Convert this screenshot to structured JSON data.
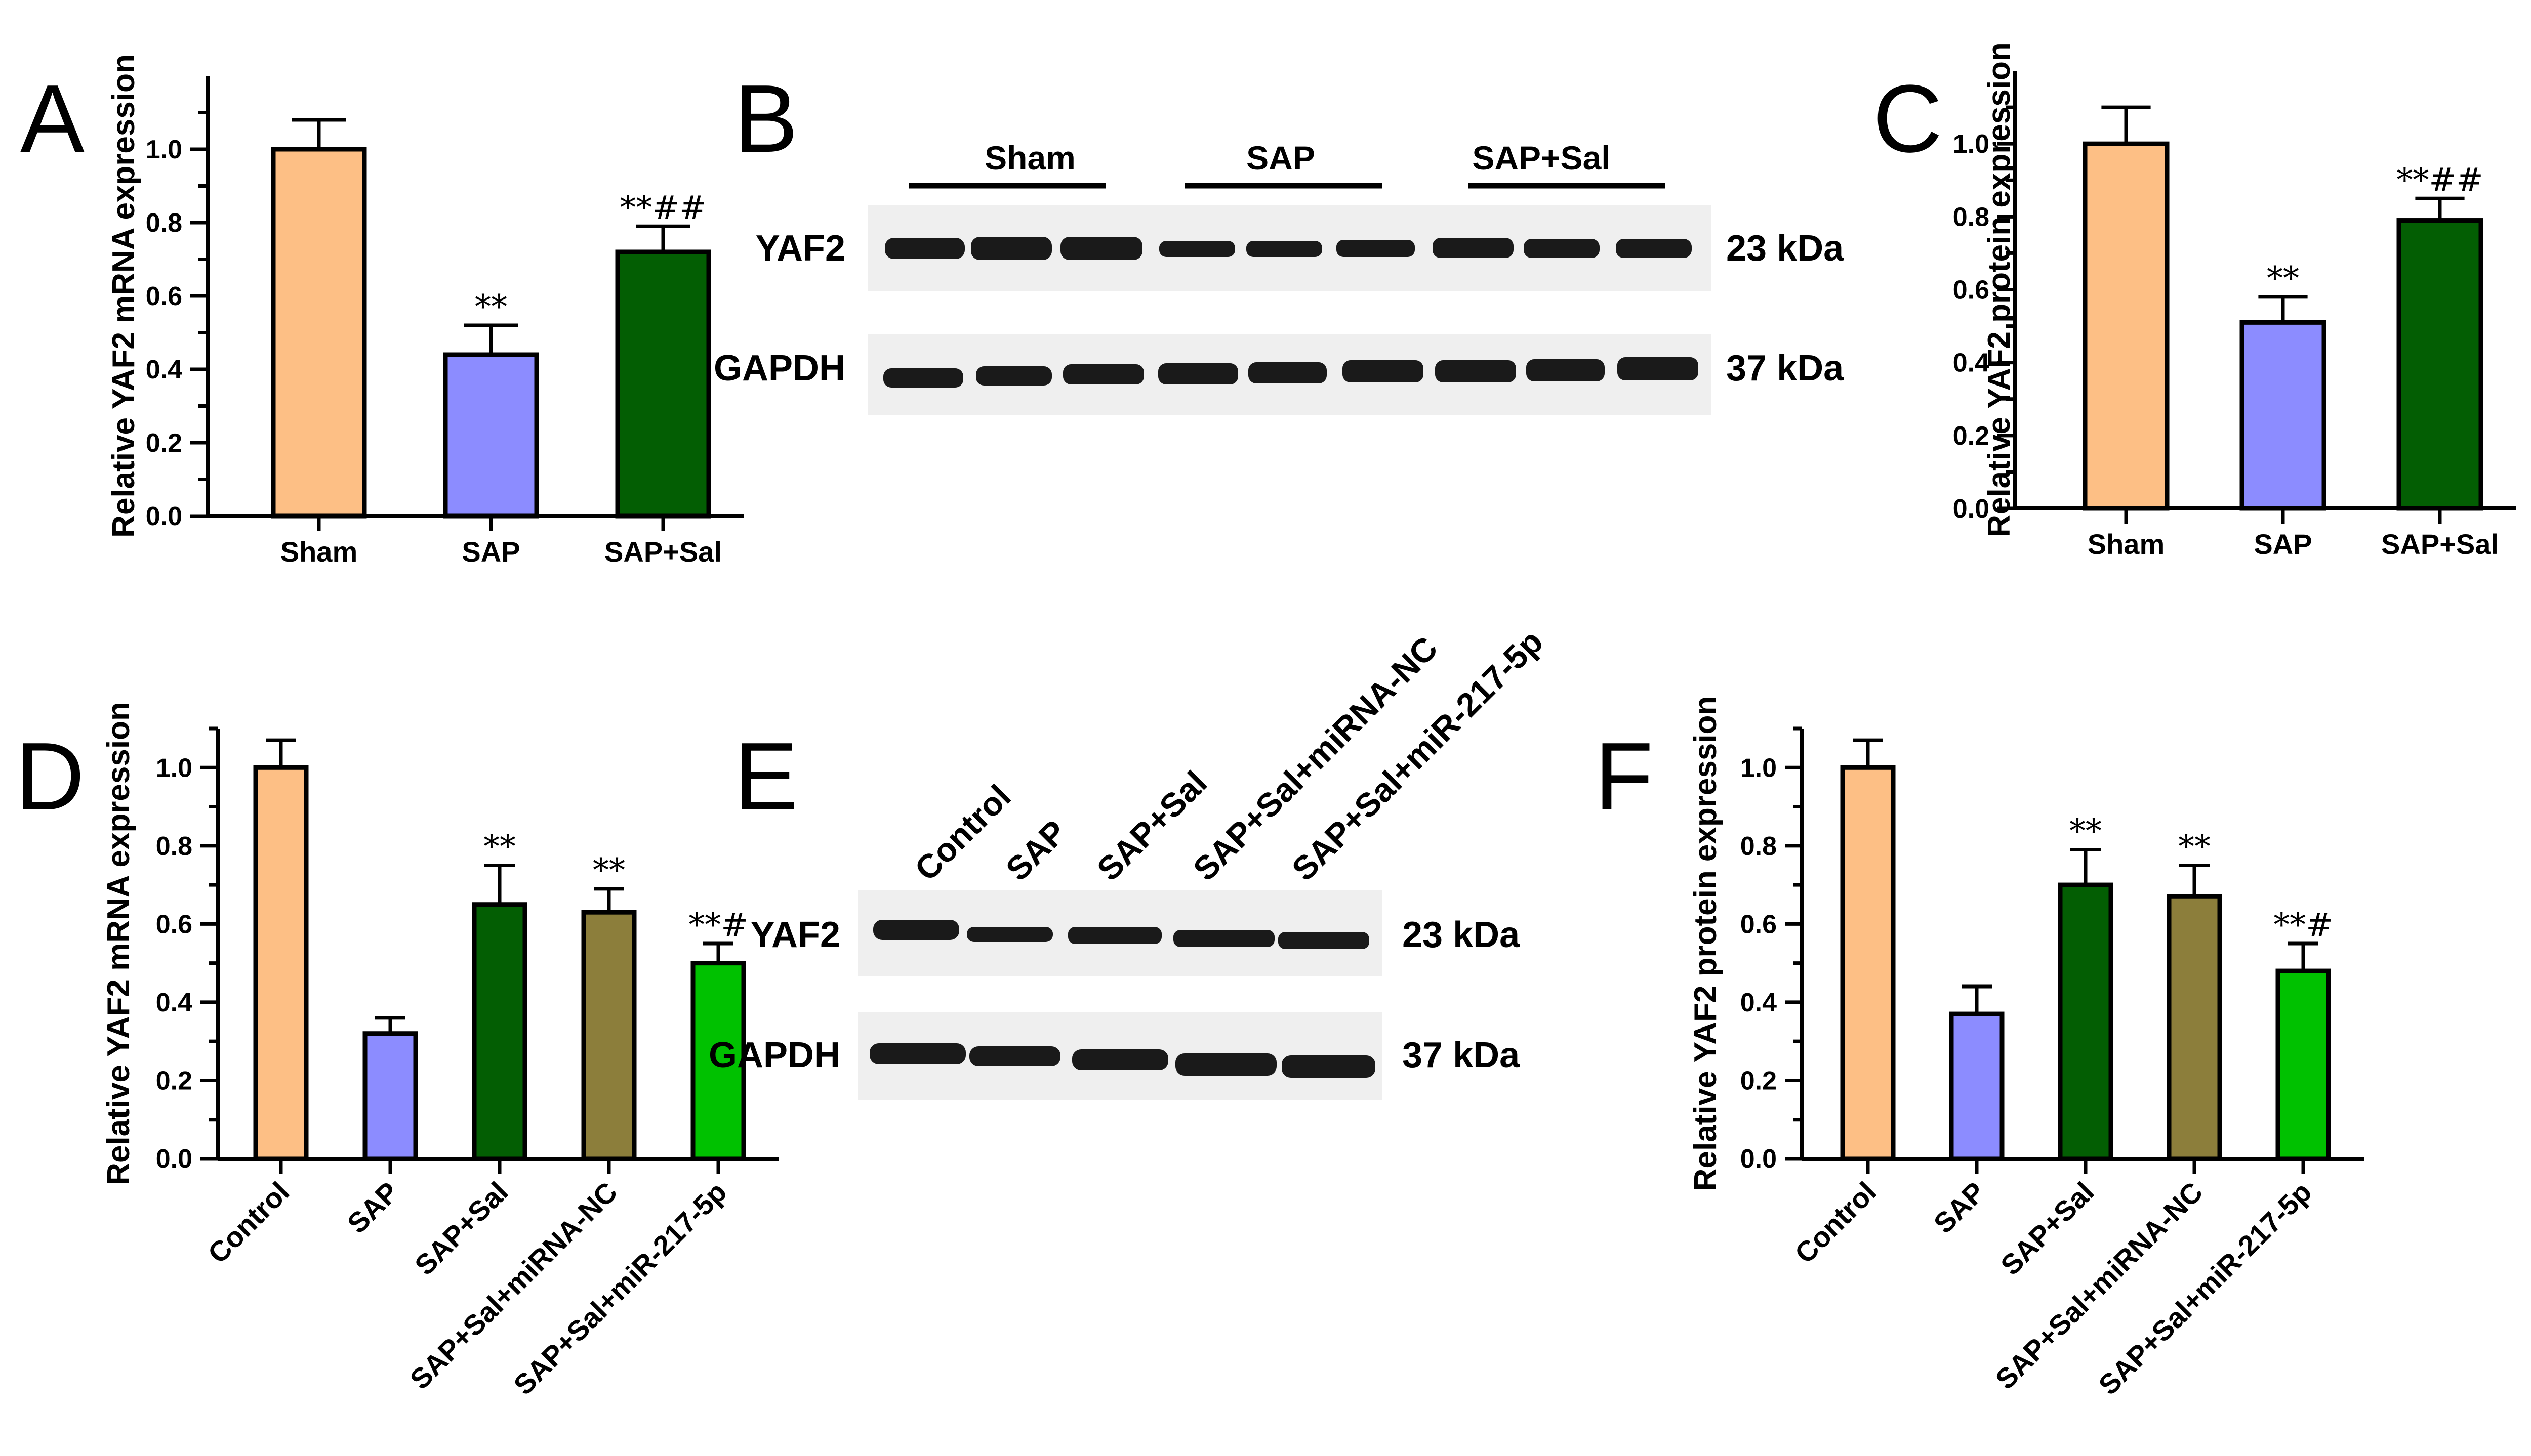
{
  "colors": {
    "Sham": "#FDBF85",
    "Control": "#FDBF85",
    "SAP": "#8C8CFF",
    "SAP+Sal": "#035E03",
    "SAP+Sal+miRNA-NC": "#8C7E3B",
    "SAP+Sal+miR-217-5p": "#00C100"
  },
  "chart_data": [
    {
      "panel": "A",
      "type": "bar",
      "categories": [
        "Sham",
        "SAP",
        "SAP+Sal"
      ],
      "values": [
        1.0,
        0.44,
        0.72
      ],
      "errors": [
        0.08,
        0.08,
        0.07
      ],
      "annotations": [
        "",
        "**",
        "**##"
      ],
      "ylabel": "Relative YAF2 mRNA expression",
      "ylim": [
        0,
        1.2
      ],
      "yticks": [
        "0.0",
        "0.2",
        "0.4",
        "0.6",
        "0.8",
        "1.0"
      ]
    },
    {
      "panel": "C",
      "type": "bar",
      "categories": [
        "Sham",
        "SAP",
        "SAP+Sal"
      ],
      "values": [
        1.0,
        0.51,
        0.79
      ],
      "errors": [
        0.1,
        0.07,
        0.06
      ],
      "annotations": [
        "",
        "**",
        "**##"
      ],
      "ylabel": "Relative YAF2 protein expression",
      "ylim": [
        0,
        1.2
      ],
      "yticks": [
        "0.0",
        "0.2",
        "0.4",
        "0.6",
        "0.8",
        "1.0"
      ]
    },
    {
      "panel": "D",
      "type": "bar",
      "categories": [
        "Control",
        "SAP",
        "SAP+Sal",
        "SAP+Sal+miRNA-NC",
        "SAP+Sal+miR-217-5p"
      ],
      "values": [
        1.0,
        0.32,
        0.65,
        0.63,
        0.5
      ],
      "errors": [
        0.07,
        0.04,
        0.1,
        0.06,
        0.05
      ],
      "annotations": [
        "",
        "",
        "**",
        "**",
        "**#"
      ],
      "ylabel": "Relative YAF2 mRNA expression",
      "ylim": [
        0,
        1.1
      ],
      "yticks": [
        "0.0",
        "0.2",
        "0.4",
        "0.6",
        "0.8",
        "1.0"
      ]
    },
    {
      "panel": "F",
      "type": "bar",
      "categories": [
        "Control",
        "SAP",
        "SAP+Sal",
        "SAP+Sal+miRNA-NC",
        "SAP+Sal+miR-217-5p"
      ],
      "values": [
        1.0,
        0.37,
        0.7,
        0.67,
        0.48
      ],
      "errors": [
        0.07,
        0.07,
        0.09,
        0.08,
        0.07
      ],
      "annotations": [
        "",
        "",
        "**",
        "**",
        "**#"
      ],
      "ylabel": "Relative YAF2 protein expression",
      "ylim": [
        0,
        1.1
      ],
      "yticks": [
        "0.0",
        "0.2",
        "0.4",
        "0.6",
        "0.8",
        "1.0"
      ]
    }
  ],
  "panels": {
    "A": "A",
    "B": "B",
    "C": "C",
    "D": "D",
    "E": "E",
    "F": "F"
  },
  "blot_B": {
    "groups": [
      "Sham",
      "SAP",
      "SAP+Sal"
    ],
    "rows": [
      {
        "protein": "YAF2",
        "size": "23 kDa"
      },
      {
        "protein": "GAPDH",
        "size": "37 kDa"
      }
    ]
  },
  "blot_E": {
    "lanes": [
      "Control",
      "SAP",
      "SAP+Sal",
      "SAP+Sal+miRNA-NC",
      "SAP+Sal+miR-217-5p"
    ],
    "rows": [
      {
        "protein": "YAF2",
        "size": "23 kDa"
      },
      {
        "protein": "GAPDH",
        "size": "37 kDa"
      }
    ]
  }
}
